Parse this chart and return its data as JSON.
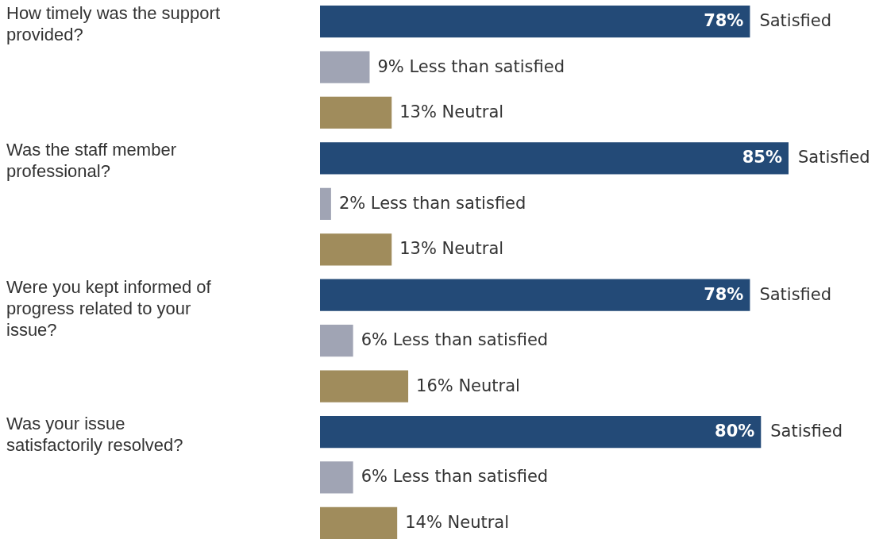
{
  "chart_data": {
    "type": "bar",
    "orientation": "horizontal",
    "categories": [
      "How timely was the support provided?",
      "Was the staff member professional?",
      "Were you kept informed of progress related to your issue?",
      "Was your issue satisfactorily resolved?"
    ],
    "series": [
      {
        "name": "Satisfied",
        "color": "#234a77",
        "values": [
          78,
          85,
          78,
          80
        ],
        "value_labels": [
          "78%",
          "85%",
          "78%",
          "80%"
        ]
      },
      {
        "name": "Less than satisfied",
        "color": "#a0a4b4",
        "values": [
          9,
          2,
          6,
          6
        ],
        "value_labels": [
          "9%",
          "2%",
          "6%",
          "6%"
        ]
      },
      {
        "name": "Neutral",
        "color": "#a08c5c",
        "values": [
          13,
          13,
          16,
          14
        ],
        "value_labels": [
          "13%",
          "13%",
          "16%",
          "14%"
        ]
      }
    ],
    "grid": false,
    "legend": false
  }
}
